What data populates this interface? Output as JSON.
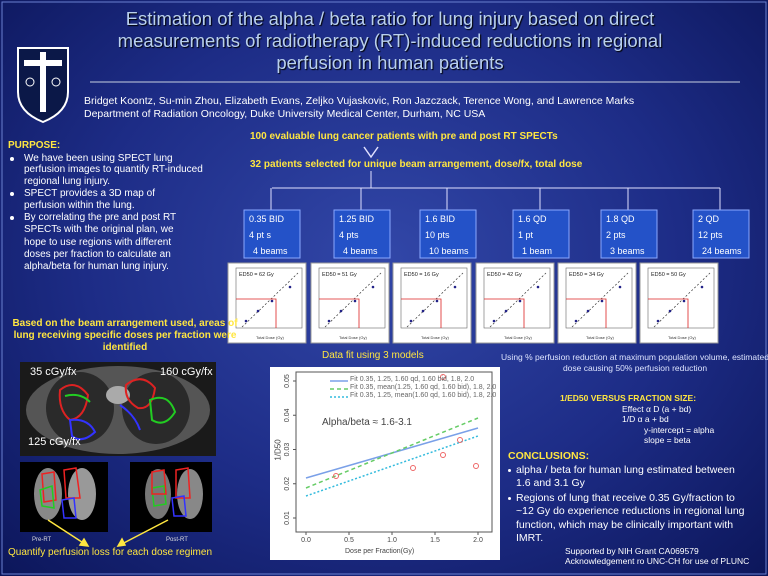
{
  "title": [
    "Estimation of the alpha / beta ratio for lung injury based on direct",
    "measurements of radiotherapy (RT)-induced reductions in regional",
    "perfusion in human patients"
  ],
  "authors": "Bridget Koontz, Su-min Zhou, Elizabeth Evans, Zeljko Vujaskovic, Ron Jazczack, Terence Wong, and Lawrence Marks",
  "affiliation": "Department of Radiation Oncology, Duke University Medical Center, Durham, NC USA",
  "purpose": {
    "heading": "PURPOSE:",
    "bullets": [
      "We have been using SPECT lung perfusion images to quantify RT-induced regional lung injury.",
      "SPECT provides a 3D map of perfusion within the lung.",
      "By correlating the pre and post RT SPECTs with the original plan, we hope to use regions with different doses per fraction to calculate an alpha/beta for human lung injury."
    ]
  },
  "flow": {
    "top": "100 evaluable lung cancer patients with  pre and post RT SPECTs",
    "middle": "32 patients selected for unique beam arrangement, dose/fx, total dose",
    "groups": [
      {
        "dose": "0.35 BID",
        "patients": "4 pt s",
        "beams": "4 beams"
      },
      {
        "dose": "1.25 BID",
        "patients": "4 pts",
        "beams": "4 beams"
      },
      {
        "dose": "1.6  BID",
        "patients": "10 pts",
        "beams": "10 beams"
      },
      {
        "dose": "1.6  QD",
        "patients": "1 pt",
        "beams": "1 beam"
      },
      {
        "dose": "1.8  QD",
        "patients": "2 pts",
        "beams": "3 beams"
      },
      {
        "dose": "2 QD",
        "patients": "12 pts",
        "beams": "24 beams"
      }
    ]
  },
  "fits": {
    "labels": [
      "ED50 = 62 Gy",
      "ED50 = 51 Gy",
      "ED50 = 16 Gy",
      "ED50 = 42 Gy",
      "ED50 = 34 Gy",
      "ED50 = 50 Gy"
    ],
    "x_label": "Total Dose (Gy)"
  },
  "beam_note": "Based on the beam arrangement used, areas of lung receiving specific doses per fraction were identified",
  "ct": {
    "labels": [
      "35 cGy/fx",
      "160 cGy/fx",
      "125 cGy/fx"
    ]
  },
  "perfusion": {
    "pre": "Pre-RT",
    "post": "Post-RT"
  },
  "quantify": "Quantify perfusion loss for each dose regimen",
  "model_fit": {
    "heading": "Data fit using 3 models",
    "legend": [
      "Fit 0.35, 1.25, 1.60 qd, 1.60 bid, 1.8, 2.0",
      "Fit 0.35, mean(1.25, 1.60 qd, 1.60 bid), 1.8, 2.0",
      "Fit 0.35, 1.25, mean(1.60 qd, 1.60 bid), 1.8, 2.0"
    ],
    "annotation": "Alpha/beta ≈ 1.6-3.1",
    "ylabel": "1/D50",
    "xlabel": "Dose per Fraction(Gy)",
    "yticks": [
      0.01,
      0.02,
      0.03,
      0.04,
      0.05
    ],
    "xticks": [
      {
        "value": 0,
        "label": "0.0"
      },
      {
        "value": 0.5,
        "label": "0.5"
      },
      {
        "value": 1,
        "label": "1.0"
      },
      {
        "value": 1.5,
        "label": "1.5"
      },
      {
        "value": 2,
        "label": "2.0"
      }
    ]
  },
  "method_note": "Using % perfusion reduction at maximum population volume, estimated dose causing 50% perfusion reduction",
  "versus": {
    "heading": "1/ED50 VERSUS FRACTION SIZE:",
    "lines": [
      "Effect α D (a + bd)",
      "1/D α a + bd",
      "y-intercept = alpha",
      "slope = beta"
    ]
  },
  "conclusions": {
    "heading": "CONCLUSIONS:",
    "bullets": [
      "alpha / beta for human lung estimated between 1.6 and 3.1 Gy",
      "Regions of lung that receive 0.35 Gy/fraction to ~12 Gy do experience reductions in regional lung function, which may be clinically important with IMRT."
    ]
  },
  "support": [
    "Supported by NIH Grant CA069579",
    "Acknowledgement ro UNC-CH for use of PLUNC"
  ]
}
